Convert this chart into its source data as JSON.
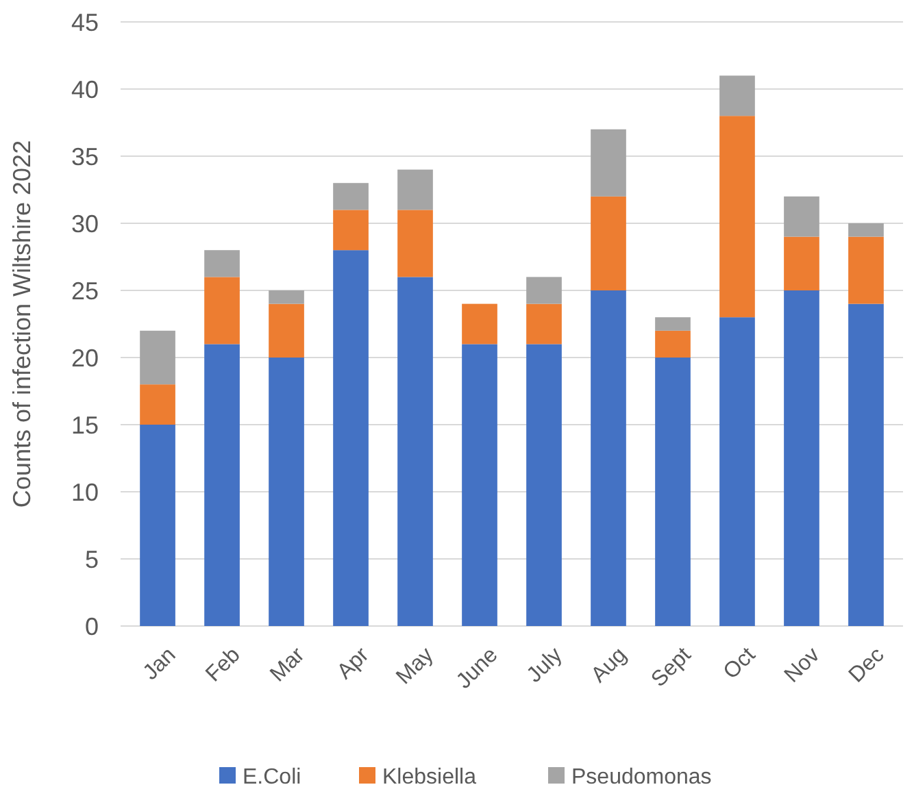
{
  "chart_data": {
    "type": "bar",
    "stacked": true,
    "ylabel": "Counts of infection Wiltshire 2022",
    "categories": [
      "Jan",
      "Feb",
      "Mar",
      "Apr",
      "May",
      "June",
      "July",
      "Aug",
      "Sept",
      "Oct",
      "Nov",
      "Dec"
    ],
    "series": [
      {
        "name": "E.Coli",
        "color": "#4472c4",
        "values": [
          15,
          21,
          20,
          28,
          26,
          21,
          21,
          25,
          20,
          23,
          25,
          24
        ]
      },
      {
        "name": "Klebsiella",
        "color": "#ed7d31",
        "values": [
          3,
          5,
          4,
          3,
          5,
          3,
          3,
          7,
          2,
          15,
          4,
          5
        ]
      },
      {
        "name": "Pseudomonas",
        "color": "#a5a5a5",
        "values": [
          4,
          2,
          1,
          2,
          3,
          0,
          2,
          5,
          1,
          3,
          3,
          1
        ]
      }
    ],
    "ylim": [
      0,
      45
    ],
    "yticks": [
      0,
      5,
      10,
      15,
      20,
      25,
      30,
      35,
      40,
      45
    ],
    "grid": "y",
    "legend": "bottom"
  }
}
